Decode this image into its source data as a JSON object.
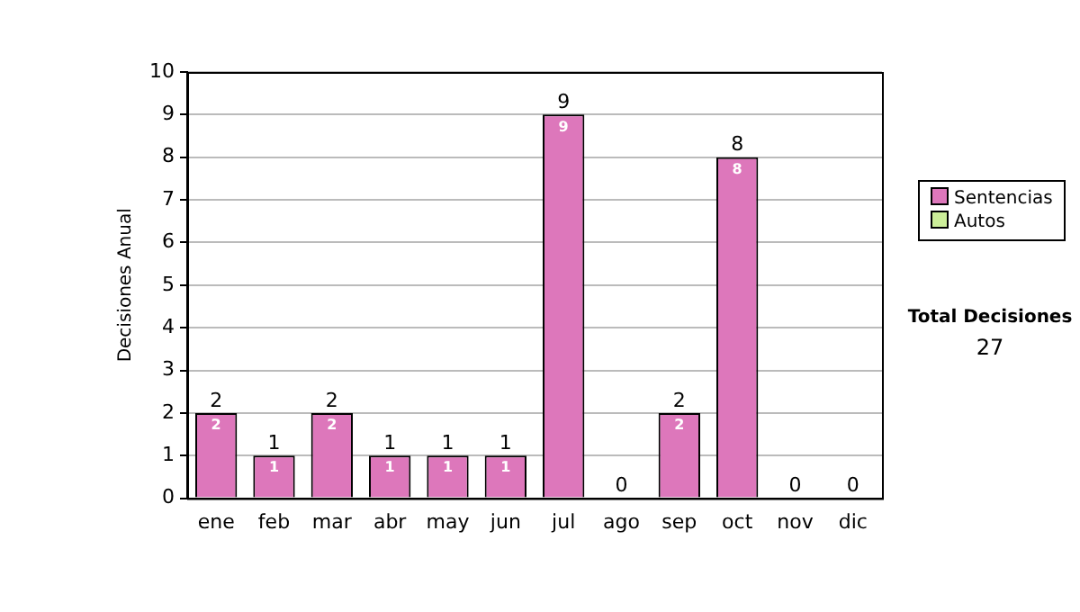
{
  "chart_data": {
    "type": "bar",
    "stacked": true,
    "ylabel": "Decisiones Anual",
    "categories": [
      "ene",
      "feb",
      "mar",
      "abr",
      "may",
      "jun",
      "jul",
      "ago",
      "sep",
      "oct",
      "nov",
      "dic"
    ],
    "series": [
      {
        "name": "Sentencias",
        "color": "#dd77bb",
        "values": [
          2,
          1,
          2,
          1,
          1,
          1,
          9,
          0,
          2,
          8,
          0,
          0
        ],
        "value_labels": [
          "2",
          "1",
          "2",
          "1",
          "1",
          "1",
          "9",
          null,
          "2",
          "8",
          null,
          null
        ]
      },
      {
        "name": "Autos",
        "color": "#ccee99",
        "values": [
          0,
          0,
          0,
          0,
          0,
          0,
          0,
          0,
          0,
          0,
          0,
          0
        ]
      }
    ],
    "totals": [
      "2",
      "1",
      "2",
      "1",
      "1",
      "1",
      "9",
      "0",
      "2",
      "8",
      "0",
      "0"
    ],
    "ylim": [
      0,
      10
    ],
    "yticks": [
      0,
      1,
      2,
      3,
      4,
      5,
      6,
      7,
      8,
      9,
      10
    ],
    "grid": "y",
    "legend": "right",
    "annotations": [
      "Total Decisiones",
      "27"
    ]
  }
}
